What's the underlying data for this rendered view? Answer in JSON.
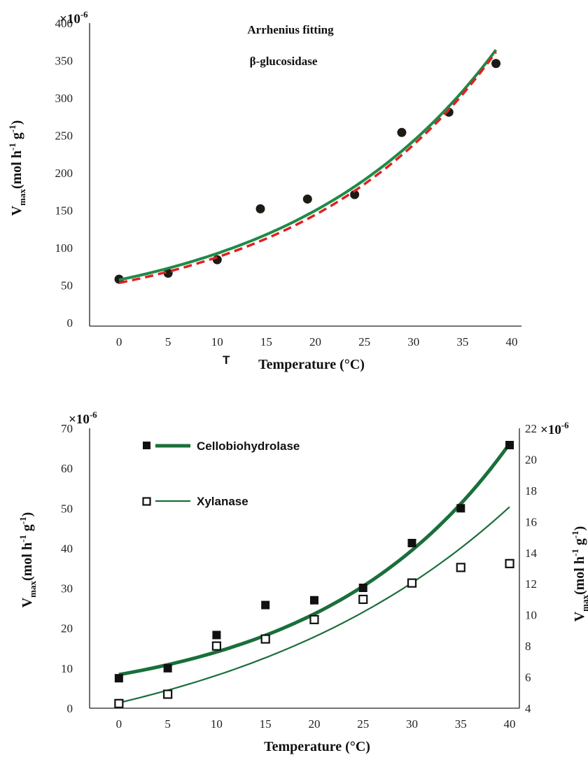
{
  "chart_data": [
    {
      "type": "scatter",
      "title": "Arrhenius fitting",
      "subtitle": "β-glucosidase",
      "xlabel": "Temperature (°C)",
      "ylabel_main": "V",
      "ylabel_sub": "max",
      "ylabel_unit_a": "(mol h",
      "ylabel_unit_b": "-1",
      "ylabel_unit_c": " g",
      "ylabel_unit_d": "-1",
      "ylabel_unit_e": ")",
      "y_multiplier_base": "×10",
      "y_multiplier_exp": "-6",
      "stray_label": "T",
      "xlim": [
        -3,
        41
      ],
      "ylim": [
        0,
        400
      ],
      "xticks": [
        0,
        5,
        10,
        15,
        20,
        25,
        30,
        35,
        40
      ],
      "yticks": [
        0,
        50,
        100,
        150,
        200,
        250,
        300,
        350,
        400
      ],
      "points": [
        {
          "x": 0,
          "y": 58
        },
        {
          "x": 5,
          "y": 66
        },
        {
          "x": 10,
          "y": 84
        },
        {
          "x": 14.4,
          "y": 152
        },
        {
          "x": 19.2,
          "y": 165
        },
        {
          "x": 24,
          "y": 171
        },
        {
          "x": 28.8,
          "y": 254
        },
        {
          "x": 33.6,
          "y": 281
        },
        {
          "x": 38.4,
          "y": 346
        }
      ],
      "fit_solid": {
        "x": [
          0,
          38.4
        ],
        "a": 57,
        "b": 0.0483,
        "color": "#1e8a48"
      },
      "fit_dashed": {
        "x": [
          0,
          38.4
        ],
        "a": 53,
        "b": 0.05,
        "color": "#e02020"
      },
      "marker_color": "#1e1a16"
    },
    {
      "type": "scatter",
      "xlabel": "Temperature (°C)",
      "ylabel_main": "V",
      "ylabel_sub": "max",
      "ylabel_unit_a": "(mol h",
      "ylabel_unit_b": "-1",
      "ylabel_unit_c": " g",
      "ylabel_unit_d": "-1",
      "ylabel_unit_e": ")",
      "y_multiplier_base": "×10",
      "y_multiplier_exp": "-6",
      "xlim": [
        -3,
        41
      ],
      "ylim_left": [
        0,
        70
      ],
      "ylim_right": [
        4,
        22
      ],
      "xticks": [
        0,
        5,
        10,
        15,
        20,
        25,
        30,
        35,
        40
      ],
      "yticks_left": [
        0,
        10,
        20,
        30,
        40,
        50,
        60,
        70
      ],
      "yticks_right": [
        4,
        6,
        8,
        10,
        12,
        14,
        16,
        18,
        20,
        22
      ],
      "legend_position": "top-left",
      "line_color": "#1a6f3a",
      "series": [
        {
          "name": "Cellobiohydrolase",
          "axis": "left",
          "marker": "filled-square",
          "points": [
            {
              "x": 0,
              "y": 7.5
            },
            {
              "x": 5,
              "y": 10
            },
            {
              "x": 10,
              "y": 18.3
            },
            {
              "x": 15,
              "y": 25.8
            },
            {
              "x": 20,
              "y": 27
            },
            {
              "x": 25,
              "y": 30.1
            },
            {
              "x": 30,
              "y": 41.3
            },
            {
              "x": 35,
              "y": 50
            },
            {
              "x": 40,
              "y": 65.8
            }
          ],
          "fit": {
            "x": [
              0,
              40
            ],
            "a": 8.4,
            "b": 0.0516
          }
        },
        {
          "name": "Xylanase",
          "axis": "right",
          "marker": "open-square",
          "points": [
            {
              "x": 0,
              "y": 4.3
            },
            {
              "x": 5,
              "y": 4.9
            },
            {
              "x": 10,
              "y": 8
            },
            {
              "x": 15,
              "y": 8.45
            },
            {
              "x": 20,
              "y": 9.7
            },
            {
              "x": 25,
              "y": 11
            },
            {
              "x": 30,
              "y": 12.05
            },
            {
              "x": 35,
              "y": 13.05
            },
            {
              "x": 40,
              "y": 13.3
            }
          ],
          "fit": {
            "x": [
              0,
              40
            ],
            "a": 4.35,
            "b": 0.034
          }
        }
      ]
    }
  ]
}
